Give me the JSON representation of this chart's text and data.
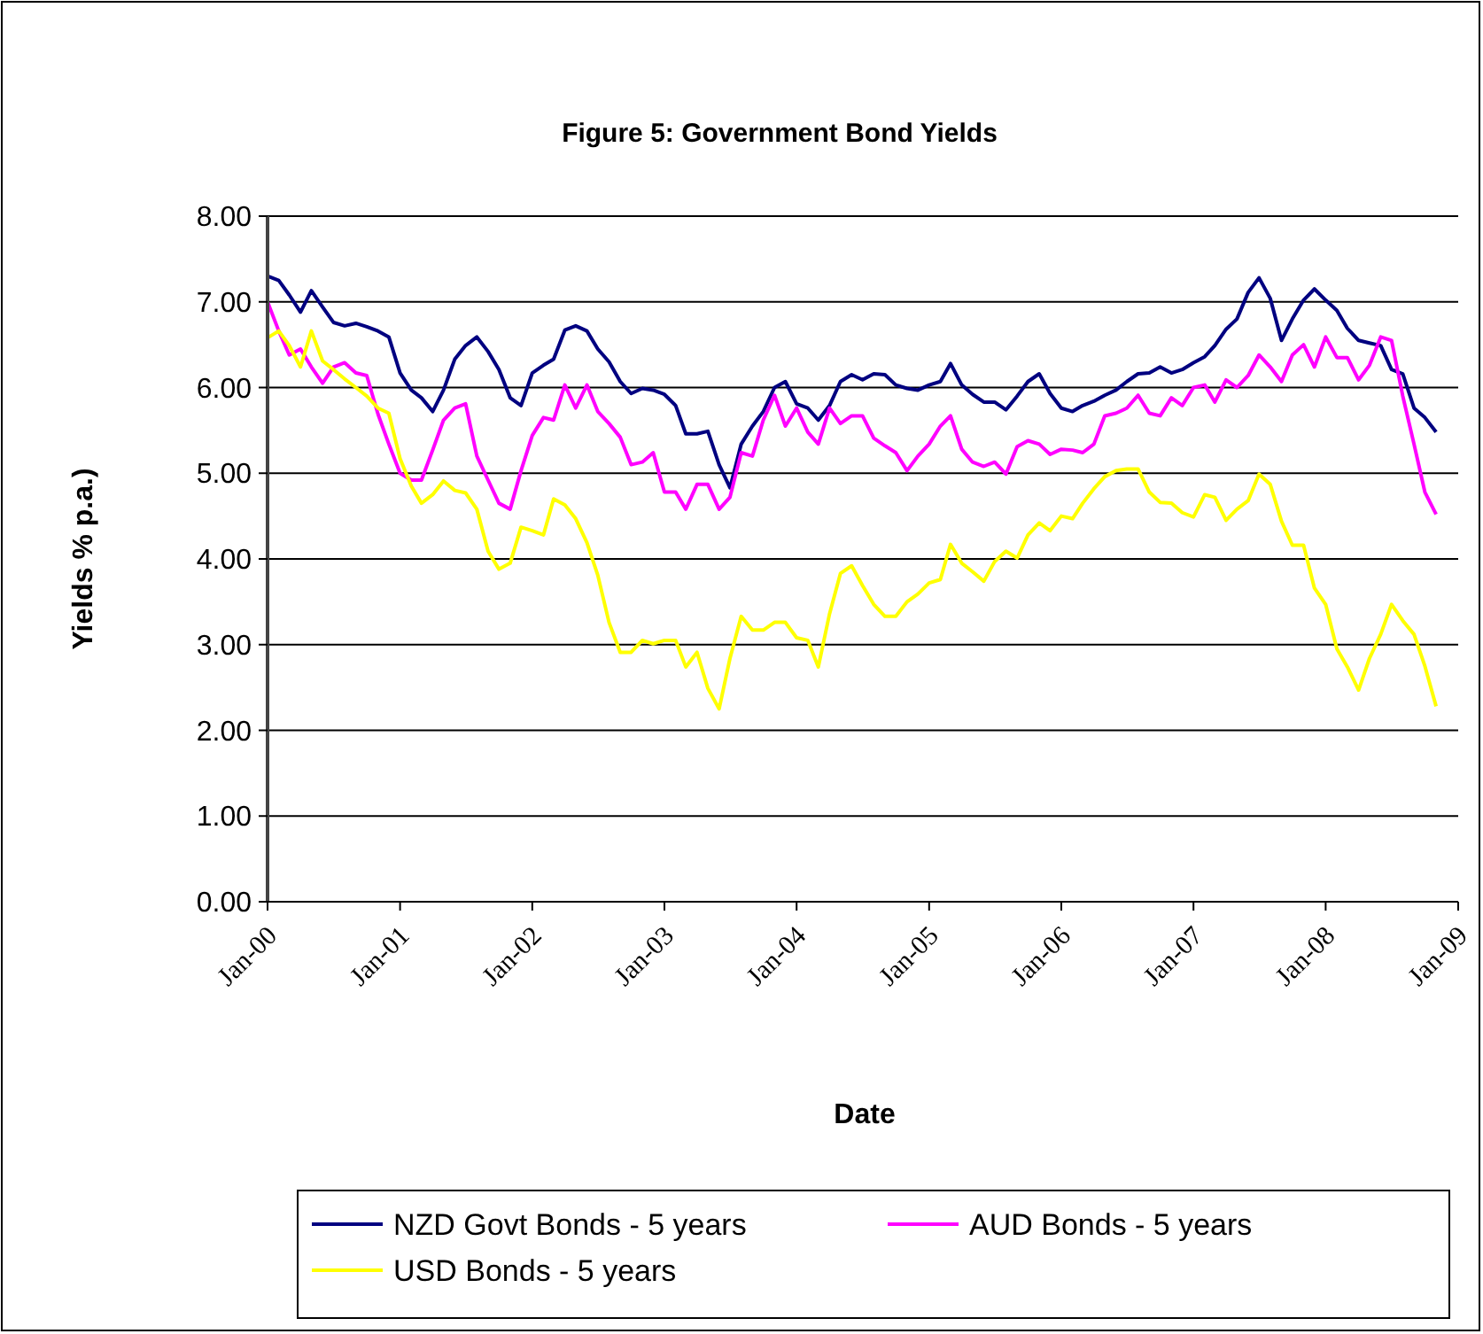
{
  "chart_data": {
    "type": "line",
    "title": "Figure 5: Government Bond Yields",
    "xlabel": "Date",
    "ylabel": "Yields % p.a.)",
    "x": [
      "2000-01",
      "2000-02",
      "2000-03",
      "2000-04",
      "2000-05",
      "2000-06",
      "2000-07",
      "2000-08",
      "2000-09",
      "2000-10",
      "2000-11",
      "2000-12",
      "2001-01",
      "2001-02",
      "2001-03",
      "2001-04",
      "2001-05",
      "2001-06",
      "2001-07",
      "2001-08",
      "2001-09",
      "2001-10",
      "2001-11",
      "2001-12",
      "2002-01",
      "2002-02",
      "2002-03",
      "2002-04",
      "2002-05",
      "2002-06",
      "2002-07",
      "2002-08",
      "2002-09",
      "2002-10",
      "2002-11",
      "2002-12",
      "2003-01",
      "2003-02",
      "2003-03",
      "2003-04",
      "2003-05",
      "2003-06",
      "2003-07",
      "2003-08",
      "2003-09",
      "2003-10",
      "2003-11",
      "2003-12",
      "2004-01",
      "2004-02",
      "2004-03",
      "2004-04",
      "2004-05",
      "2004-06",
      "2004-07",
      "2004-08",
      "2004-09",
      "2004-10",
      "2004-11",
      "2004-12",
      "2005-01",
      "2005-02",
      "2005-03",
      "2005-04",
      "2005-05",
      "2005-06",
      "2005-07",
      "2005-08",
      "2005-09",
      "2005-10",
      "2005-11",
      "2005-12",
      "2006-01",
      "2006-02",
      "2006-03",
      "2006-04",
      "2006-05",
      "2006-06",
      "2006-07",
      "2006-08",
      "2006-09",
      "2006-10",
      "2006-11",
      "2006-12",
      "2007-01",
      "2007-02",
      "2007-03",
      "2007-04",
      "2007-05",
      "2007-06",
      "2007-07",
      "2007-08",
      "2007-09",
      "2007-10",
      "2007-11",
      "2007-12",
      "2008-01",
      "2008-02",
      "2008-03",
      "2008-04",
      "2008-05",
      "2008-06",
      "2008-07",
      "2008-08",
      "2008-09",
      "2008-10",
      "2008-11"
    ],
    "series": [
      {
        "name": "NZD Govt Bonds - 5 years",
        "color": "#000080",
        "values": [
          7.3,
          7.25,
          7.08,
          6.88,
          7.13,
          6.94,
          6.76,
          6.72,
          6.75,
          6.71,
          6.66,
          6.59,
          6.17,
          5.97,
          5.88,
          5.72,
          5.97,
          6.33,
          6.49,
          6.59,
          6.42,
          6.21,
          5.88,
          5.79,
          6.17,
          6.26,
          6.33,
          6.67,
          6.72,
          6.66,
          6.45,
          6.3,
          6.07,
          5.93,
          5.99,
          5.97,
          5.92,
          5.79,
          5.46,
          5.46,
          5.49,
          5.1,
          4.83,
          5.34,
          5.55,
          5.72,
          6.0,
          6.07,
          5.81,
          5.76,
          5.62,
          5.79,
          6.07,
          6.15,
          6.09,
          6.16,
          6.15,
          6.03,
          5.99,
          5.97,
          6.03,
          6.07,
          6.28,
          6.03,
          5.92,
          5.83,
          5.83,
          5.74,
          5.9,
          6.07,
          6.16,
          5.93,
          5.76,
          5.72,
          5.79,
          5.84,
          5.91,
          5.97,
          6.07,
          6.16,
          6.17,
          6.24,
          6.17,
          6.21,
          6.29,
          6.36,
          6.49,
          6.68,
          6.8,
          7.11,
          7.28,
          7.04,
          6.55,
          6.8,
          7.02,
          7.15,
          7.02,
          6.9,
          6.69,
          6.55,
          6.52,
          6.49,
          6.21,
          6.16,
          5.76,
          5.65,
          5.48
        ]
      },
      {
        "name": "AUD Bonds - 5 years",
        "color": "#ff00ff",
        "values": [
          7.0,
          6.66,
          6.38,
          6.45,
          6.24,
          6.05,
          6.24,
          6.29,
          6.17,
          6.14,
          5.69,
          5.34,
          5.0,
          4.92,
          4.92,
          5.27,
          5.62,
          5.76,
          5.81,
          5.2,
          4.92,
          4.65,
          4.58,
          5.03,
          5.44,
          5.65,
          5.62,
          6.03,
          5.76,
          6.03,
          5.72,
          5.58,
          5.42,
          5.1,
          5.13,
          5.24,
          4.78,
          4.78,
          4.58,
          4.87,
          4.87,
          4.58,
          4.72,
          5.24,
          5.2,
          5.62,
          5.91,
          5.55,
          5.76,
          5.48,
          5.34,
          5.76,
          5.58,
          5.67,
          5.67,
          5.41,
          5.32,
          5.24,
          5.03,
          5.2,
          5.34,
          5.55,
          5.67,
          5.28,
          5.13,
          5.08,
          5.13,
          4.99,
          5.31,
          5.38,
          5.34,
          5.22,
          5.28,
          5.27,
          5.24,
          5.34,
          5.67,
          5.7,
          5.76,
          5.91,
          5.7,
          5.67,
          5.88,
          5.79,
          6.0,
          6.03,
          5.83,
          6.09,
          6.0,
          6.14,
          6.38,
          6.24,
          6.07,
          6.38,
          6.5,
          6.24,
          6.59,
          6.35,
          6.35,
          6.09,
          6.26,
          6.59,
          6.55,
          5.9,
          5.34,
          4.78,
          4.52
        ]
      },
      {
        "name": "USD Bonds - 5 years",
        "color": "#ffff00",
        "values": [
          6.58,
          6.66,
          6.49,
          6.24,
          6.66,
          6.31,
          6.21,
          6.1,
          6.0,
          5.9,
          5.76,
          5.7,
          5.17,
          4.85,
          4.65,
          4.75,
          4.91,
          4.8,
          4.77,
          4.58,
          4.09,
          3.88,
          3.95,
          4.37,
          4.33,
          4.28,
          4.7,
          4.63,
          4.47,
          4.19,
          3.81,
          3.26,
          2.91,
          2.91,
          3.05,
          3.01,
          3.05,
          3.05,
          2.74,
          2.91,
          2.49,
          2.25,
          2.84,
          3.33,
          3.17,
          3.17,
          3.26,
          3.26,
          3.08,
          3.05,
          2.74,
          3.36,
          3.83,
          3.92,
          3.69,
          3.47,
          3.33,
          3.33,
          3.5,
          3.59,
          3.72,
          3.76,
          4.17,
          3.95,
          3.85,
          3.74,
          3.97,
          4.09,
          4.01,
          4.28,
          4.42,
          4.33,
          4.5,
          4.47,
          4.65,
          4.82,
          4.96,
          5.03,
          5.05,
          5.05,
          4.78,
          4.66,
          4.65,
          4.54,
          4.49,
          4.75,
          4.72,
          4.45,
          4.58,
          4.68,
          4.99,
          4.87,
          4.44,
          4.16,
          4.16,
          3.66,
          3.47,
          2.95,
          2.74,
          2.47,
          2.84,
          3.12,
          3.47,
          3.28,
          3.12,
          2.75,
          2.28
        ]
      }
    ],
    "xlim": [
      "2000-01",
      "2009-01"
    ],
    "xticks": [
      {
        "value": "2000-01",
        "label": "Jan-00"
      },
      {
        "value": "2001-01",
        "label": "Jan-01"
      },
      {
        "value": "2002-01",
        "label": "Jan-02"
      },
      {
        "value": "2003-01",
        "label": "Jan-03"
      },
      {
        "value": "2004-01",
        "label": "Jan-04"
      },
      {
        "value": "2005-01",
        "label": "Jan-05"
      },
      {
        "value": "2006-01",
        "label": "Jan-06"
      },
      {
        "value": "2007-01",
        "label": "Jan-07"
      },
      {
        "value": "2008-01",
        "label": "Jan-08"
      },
      {
        "value": "2009-01",
        "label": "Jan-09"
      }
    ],
    "ylim": [
      0,
      8
    ],
    "yticks": [
      {
        "value": 0,
        "label": "0.00"
      },
      {
        "value": 1,
        "label": "1.00"
      },
      {
        "value": 2,
        "label": "2.00"
      },
      {
        "value": 3,
        "label": "3.00"
      },
      {
        "value": 4,
        "label": "4.00"
      },
      {
        "value": 5,
        "label": "5.00"
      },
      {
        "value": 6,
        "label": "6.00"
      },
      {
        "value": 7,
        "label": "7.00"
      },
      {
        "value": 8,
        "label": "8.00"
      }
    ],
    "grid": "y",
    "legend": "bottom",
    "marker": "none",
    "line_style": "solid"
  }
}
